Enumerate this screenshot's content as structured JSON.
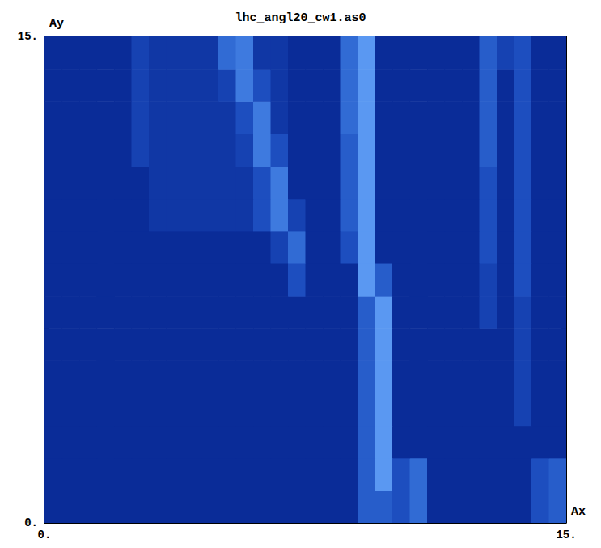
{
  "chart_data": {
    "type": "heatmap",
    "title": "lhc_angl20_cw1.as0",
    "x_label": "Ax",
    "y_label": "Ay",
    "x": [
      0.25,
      0.75,
      1.25,
      1.75,
      2.25,
      2.75,
      3.25,
      3.75,
      4.25,
      4.75,
      5.25,
      5.75,
      6.25,
      6.75,
      7.25,
      7.75,
      8.25,
      8.75,
      9.25,
      9.75,
      10.25,
      10.75,
      11.25,
      11.75,
      12.25,
      12.75,
      13.25,
      13.75,
      14.25,
      14.75
    ],
    "y": [
      0.5,
      1.5,
      2.5,
      3.5,
      4.5,
      5.5,
      6.5,
      7.5,
      8.5,
      9.5,
      10.5,
      11.5,
      12.5,
      13.5,
      14.5
    ],
    "cells": [
      [
        0,
        0,
        0,
        0,
        0,
        0,
        0,
        0,
        0,
        0,
        0,
        0,
        0,
        0,
        0,
        0,
        0,
        0,
        4,
        4,
        3,
        5,
        0,
        0,
        0,
        0,
        0,
        0,
        3,
        4
      ],
      [
        0,
        0,
        0,
        0,
        0,
        0,
        0,
        0,
        0,
        0,
        0,
        0,
        0,
        0,
        0,
        0,
        0,
        0,
        4,
        8,
        3,
        5,
        0,
        0,
        0,
        0,
        0,
        0,
        3,
        4
      ],
      [
        0,
        0,
        0,
        0,
        0,
        0,
        0,
        0,
        0,
        0,
        0,
        0,
        0,
        0,
        0,
        0,
        0,
        0,
        4,
        8,
        0,
        0,
        0,
        0,
        0,
        0,
        0,
        0,
        0,
        0
      ],
      [
        0,
        0,
        0,
        0,
        0,
        0,
        0,
        0,
        0,
        0,
        0,
        0,
        0,
        0,
        0,
        0,
        0,
        0,
        4,
        8,
        0,
        0,
        0,
        0,
        0,
        0,
        0,
        2,
        0,
        0
      ],
      [
        0,
        0,
        0,
        0,
        0,
        0,
        0,
        0,
        0,
        0,
        0,
        0,
        0,
        0,
        0,
        0,
        0,
        0,
        4,
        8,
        0,
        0,
        0,
        0,
        0,
        0,
        0,
        2,
        0,
        0
      ],
      [
        0,
        0,
        0,
        0,
        0,
        0,
        0,
        0,
        0,
        0,
        0,
        0,
        0,
        0,
        0,
        0,
        0,
        0,
        4,
        8,
        0,
        0,
        0,
        0,
        0,
        0,
        0,
        2,
        0,
        0
      ],
      [
        0,
        0,
        0,
        0,
        0,
        0,
        0,
        0,
        0,
        0,
        0,
        0,
        0,
        0,
        0,
        0,
        0,
        0,
        4,
        8,
        0,
        0,
        0,
        0,
        0,
        2,
        0,
        2,
        0,
        0
      ],
      [
        0,
        0,
        0,
        0,
        0,
        0,
        0,
        0,
        0,
        0,
        0,
        0,
        0,
        0,
        3,
        0,
        0,
        0,
        8,
        4,
        0,
        0,
        0,
        0,
        0,
        2,
        0,
        3,
        0,
        0
      ],
      [
        0,
        0,
        0,
        0,
        0,
        0,
        0,
        0,
        0,
        0,
        0,
        0,
        0,
        2,
        5,
        0,
        0,
        3,
        8,
        0,
        0,
        0,
        0,
        0,
        0,
        3,
        0,
        3,
        0,
        0
      ],
      [
        0,
        0,
        0,
        0,
        0,
        0,
        1,
        1,
        1,
        1,
        1,
        1,
        3,
        6,
        2,
        0,
        0,
        4,
        8,
        0,
        0,
        0,
        0,
        0,
        0,
        3,
        0,
        3,
        0,
        0
      ],
      [
        0,
        0,
        0,
        0,
        0,
        0,
        1,
        1,
        1,
        1,
        1,
        1,
        3,
        6,
        0,
        0,
        0,
        4,
        8,
        0,
        0,
        0,
        0,
        0,
        0,
        3,
        0,
        3,
        0,
        0
      ],
      [
        0,
        0,
        0,
        0,
        0,
        2,
        1,
        1,
        1,
        1,
        1,
        2,
        6,
        3,
        0,
        0,
        0,
        4,
        8,
        0,
        0,
        0,
        0,
        0,
        0,
        4,
        0,
        3,
        0,
        0
      ],
      [
        0,
        0,
        0,
        0,
        0,
        2,
        1,
        1,
        1,
        1,
        1,
        3,
        6,
        1,
        0,
        0,
        0,
        5,
        8,
        0,
        0,
        0,
        0,
        0,
        0,
        4,
        0,
        3,
        0,
        0
      ],
      [
        0,
        0,
        0,
        0,
        0,
        2,
        1,
        1,
        1,
        1,
        2,
        6,
        3,
        1,
        0,
        0,
        0,
        5,
        8,
        0,
        0,
        0,
        0,
        0,
        0,
        4,
        0,
        3,
        0,
        0
      ],
      [
        0,
        0,
        0,
        0,
        0,
        2,
        1,
        1,
        1,
        1,
        5,
        6,
        1,
        1,
        0,
        0,
        0,
        5,
        8,
        0,
        0,
        0,
        0,
        0,
        0,
        4,
        2,
        3,
        0,
        0
      ]
    ],
    "color_range": [
      0,
      8
    ],
    "xlim": [
      0,
      15
    ],
    "ylim": [
      0,
      15
    ],
    "xticks": [
      {
        "value": 0,
        "label": "0."
      },
      {
        "value": 15,
        "label": "15."
      }
    ],
    "yticks": [
      {
        "value": 0,
        "label": "0."
      },
      {
        "value": 15,
        "label": "15."
      }
    ]
  }
}
